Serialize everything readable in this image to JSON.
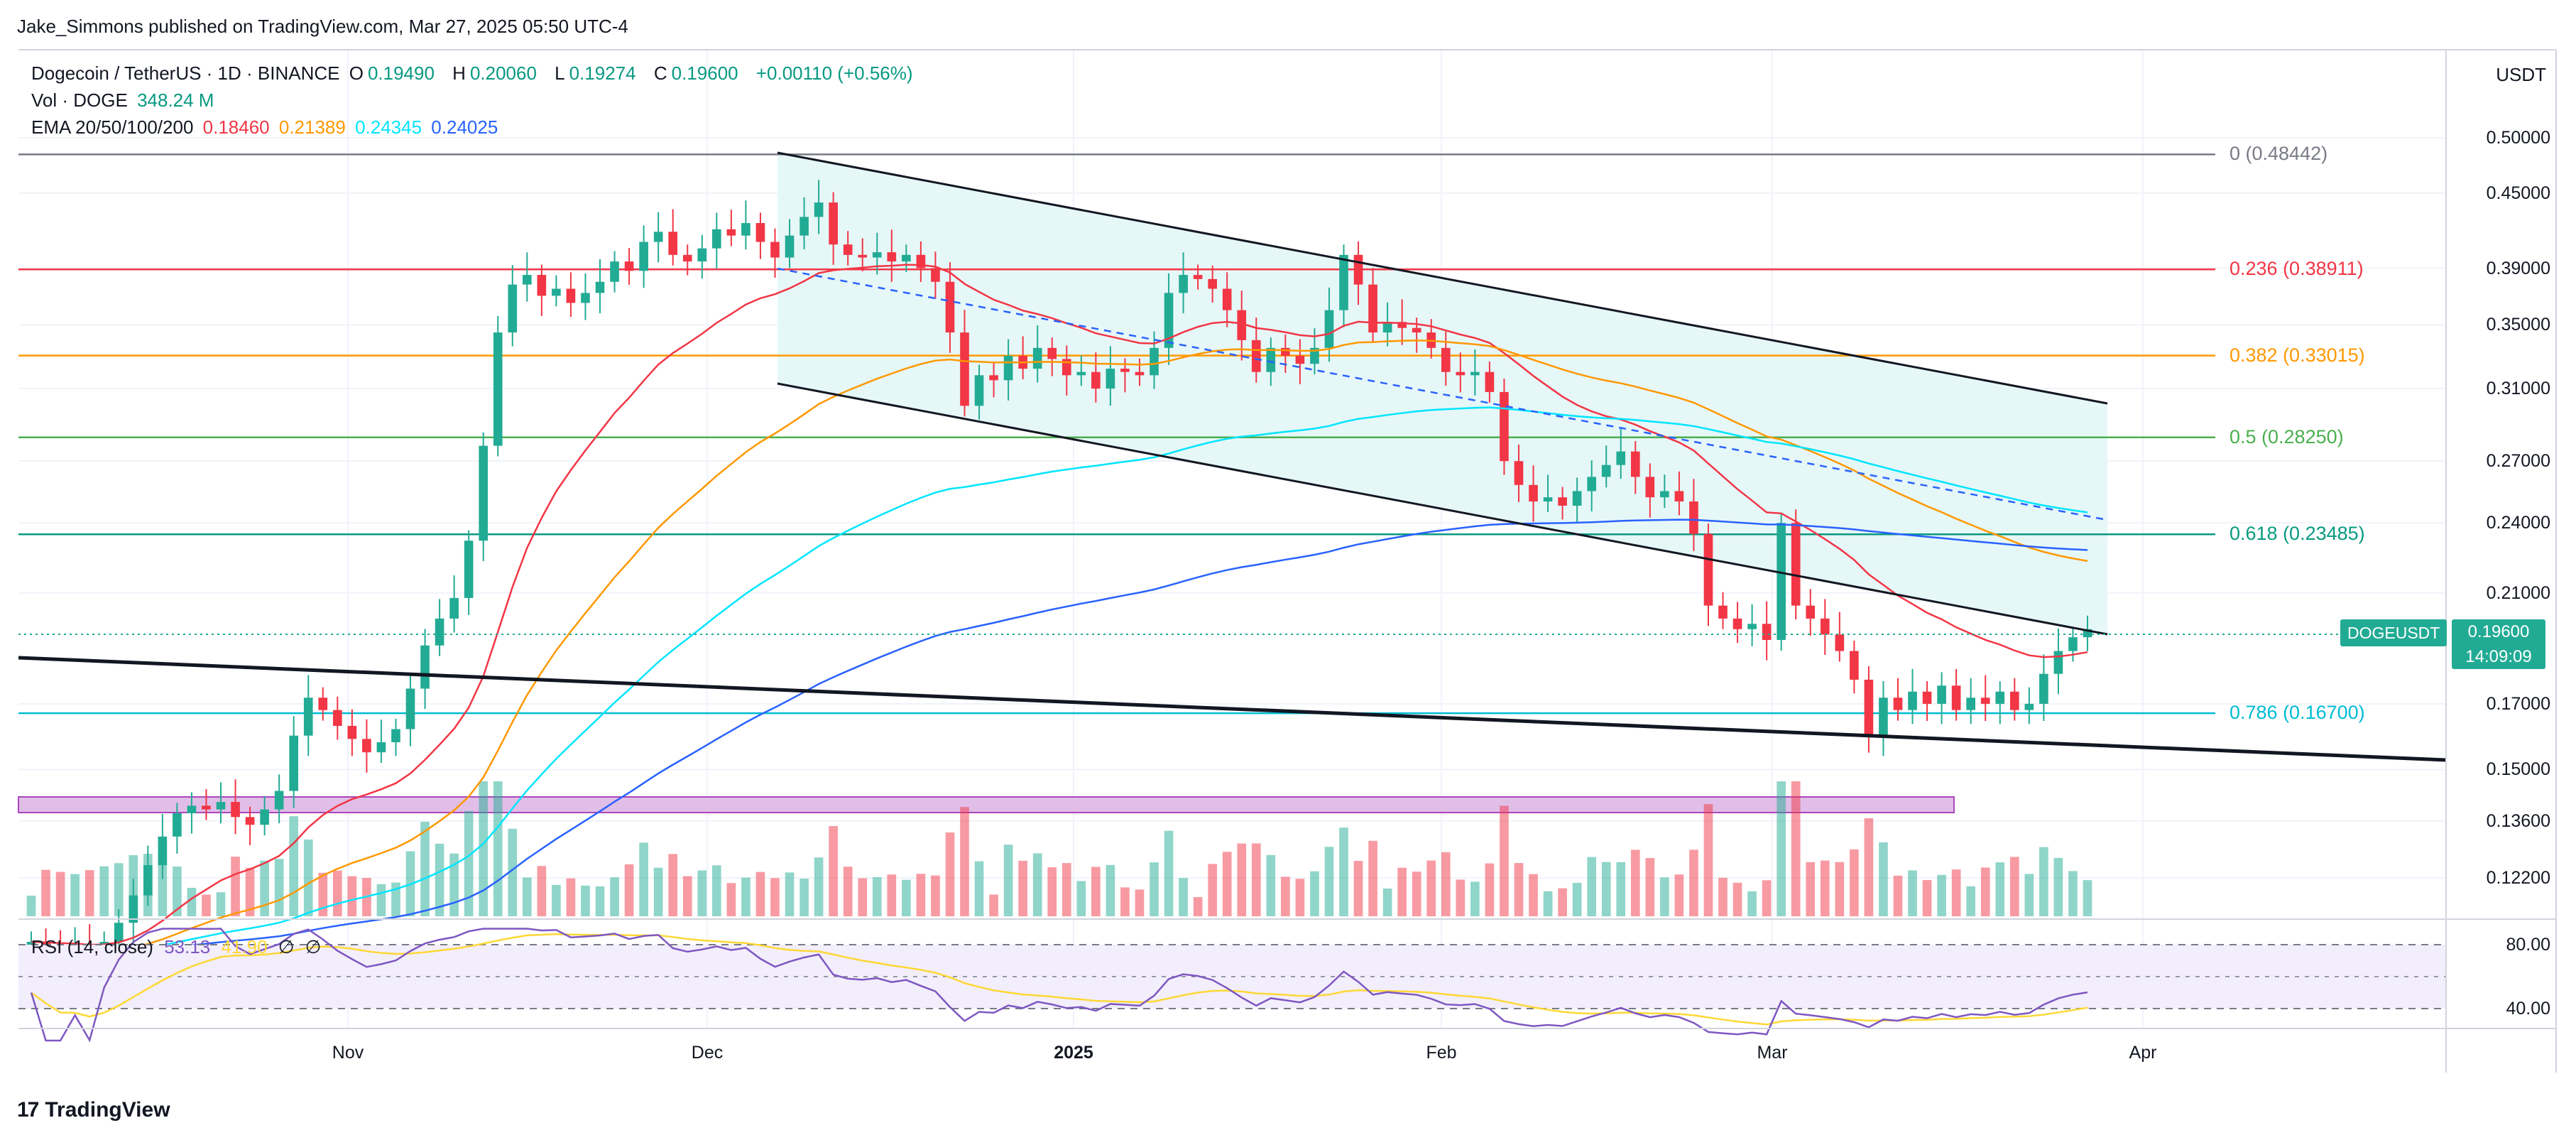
{
  "header": {
    "published": "Jake_Simmons published on TradingView.com, Mar 27, 2025 05:50 UTC-4",
    "symbol_title": "Dogecoin / TetherUS · 1D · BINANCE",
    "ohlc": {
      "o_label": "O",
      "o": "0.19490",
      "h_label": "H",
      "h": "0.20060",
      "l_label": "L",
      "l": "0.19274",
      "c_label": "C",
      "c": "0.19600",
      "change": "+0.00110 (+0.56%)"
    },
    "vol_label": "Vol · DOGE",
    "vol_value": "348.24 M",
    "ema_label": "EMA 20/50/100/200",
    "ema_values": [
      "0.18460",
      "0.21389",
      "0.24345",
      "0.24025"
    ],
    "rsi_label": "RSI (14, close)",
    "rsi_value": "53.13",
    "rsi_ma": "41.90",
    "rsi_extra": [
      "∅",
      "∅"
    ]
  },
  "colors": {
    "up": "#22ab94",
    "down": "#f23645",
    "ema20": "#f23645",
    "ema50": "#ff9800",
    "ema100": "#00e5ff",
    "ema200": "#2962ff",
    "channel_fill": "#e6f7f8",
    "zone": "#e1bee7"
  },
  "price_axis": {
    "currency": "USDT",
    "ticks": [
      "0.50000",
      "0.45000",
      "0.39000",
      "0.35000",
      "0.31000",
      "0.27000",
      "0.24000",
      "0.21000",
      "0.17000",
      "0.15000",
      "0.13600",
      "0.12200"
    ]
  },
  "rsi_axis": {
    "ticks": [
      "80.00",
      "40.00"
    ]
  },
  "time_axis": {
    "ticks": [
      "Nov",
      "Dec",
      "2025",
      "Feb",
      "Mar",
      "Apr"
    ]
  },
  "last_price": {
    "symbol": "DOGEUSDT",
    "price": "0.19600",
    "countdown": "14:09:09"
  },
  "fib_levels": [
    {
      "label": "0 (0.48442)",
      "value": 0.48442,
      "color": "#787b86"
    },
    {
      "label": "0.236 (0.38911)",
      "value": 0.38911,
      "color": "#f23645"
    },
    {
      "label": "0.382 (0.33015)",
      "value": 0.33015,
      "color": "#ff9800"
    },
    {
      "label": "0.5 (0.28250)",
      "value": 0.2825,
      "color": "#4caf50"
    },
    {
      "label": "0.618 (0.23485)",
      "value": 0.23485,
      "color": "#089981"
    },
    {
      "label": "0.786 (0.16700)",
      "value": 0.167,
      "color": "#00bcd4"
    }
  ],
  "chart_data": {
    "type": "candlestick",
    "title": "Dogecoin / TetherUS · 1D · BINANCE",
    "x": [
      "Nov",
      "Dec",
      "2025",
      "Feb",
      "Mar",
      "Apr"
    ],
    "y_scale": "log",
    "ylim": [
      0.115,
      0.52
    ],
    "closes_approx": [
      0.108,
      0.107,
      0.106,
      0.107,
      0.105,
      0.108,
      0.112,
      0.118,
      0.125,
      0.132,
      0.138,
      0.14,
      0.139,
      0.141,
      0.137,
      0.135,
      0.139,
      0.144,
      0.16,
      0.172,
      0.168,
      0.163,
      0.159,
      0.155,
      0.158,
      0.162,
      0.175,
      0.19,
      0.2,
      0.208,
      0.232,
      0.278,
      0.345,
      0.378,
      0.385,
      0.37,
      0.375,
      0.365,
      0.372,
      0.38,
      0.395,
      0.388,
      0.41,
      0.418,
      0.4,
      0.395,
      0.405,
      0.42,
      0.415,
      0.425,
      0.41,
      0.398,
      0.415,
      0.43,
      0.442,
      0.408,
      0.4,
      0.398,
      0.402,
      0.395,
      0.4,
      0.39,
      0.38,
      0.345,
      0.3,
      0.318,
      0.315,
      0.33,
      0.322,
      0.335,
      0.328,
      0.318,
      0.32,
      0.31,
      0.322,
      0.32,
      0.318,
      0.335,
      0.372,
      0.385,
      0.382,
      0.375,
      0.36,
      0.34,
      0.32,
      0.335,
      0.33,
      0.325,
      0.335,
      0.36,
      0.4,
      0.378,
      0.345,
      0.352,
      0.348,
      0.345,
      0.335,
      0.32,
      0.318,
      0.32,
      0.308,
      0.27,
      0.258,
      0.25,
      0.252,
      0.248,
      0.255,
      0.262,
      0.268,
      0.275,
      0.262,
      0.252,
      0.255,
      0.25,
      0.235,
      0.205,
      0.2,
      0.196,
      0.198,
      0.192,
      0.24,
      0.205,
      0.2,
      0.194,
      0.188,
      0.178,
      0.16,
      0.172,
      0.168,
      0.174,
      0.17,
      0.176,
      0.168,
      0.172,
      0.17,
      0.174,
      0.168,
      0.17,
      0.18,
      0.188,
      0.193,
      0.196
    ],
    "ema": [
      {
        "name": "EMA 20",
        "last": 0.1846
      },
      {
        "name": "EMA 50",
        "last": 0.21389
      },
      {
        "name": "EMA 100",
        "last": 0.24345
      },
      {
        "name": "EMA 200",
        "last": 0.24025
      }
    ],
    "fibonacci": [
      0.48442,
      0.38911,
      0.33015,
      0.2825,
      0.23485,
      0.167
    ],
    "rsi": {
      "value": 53.13,
      "ma": 41.9,
      "levels": [
        80,
        40
      ]
    }
  }
}
